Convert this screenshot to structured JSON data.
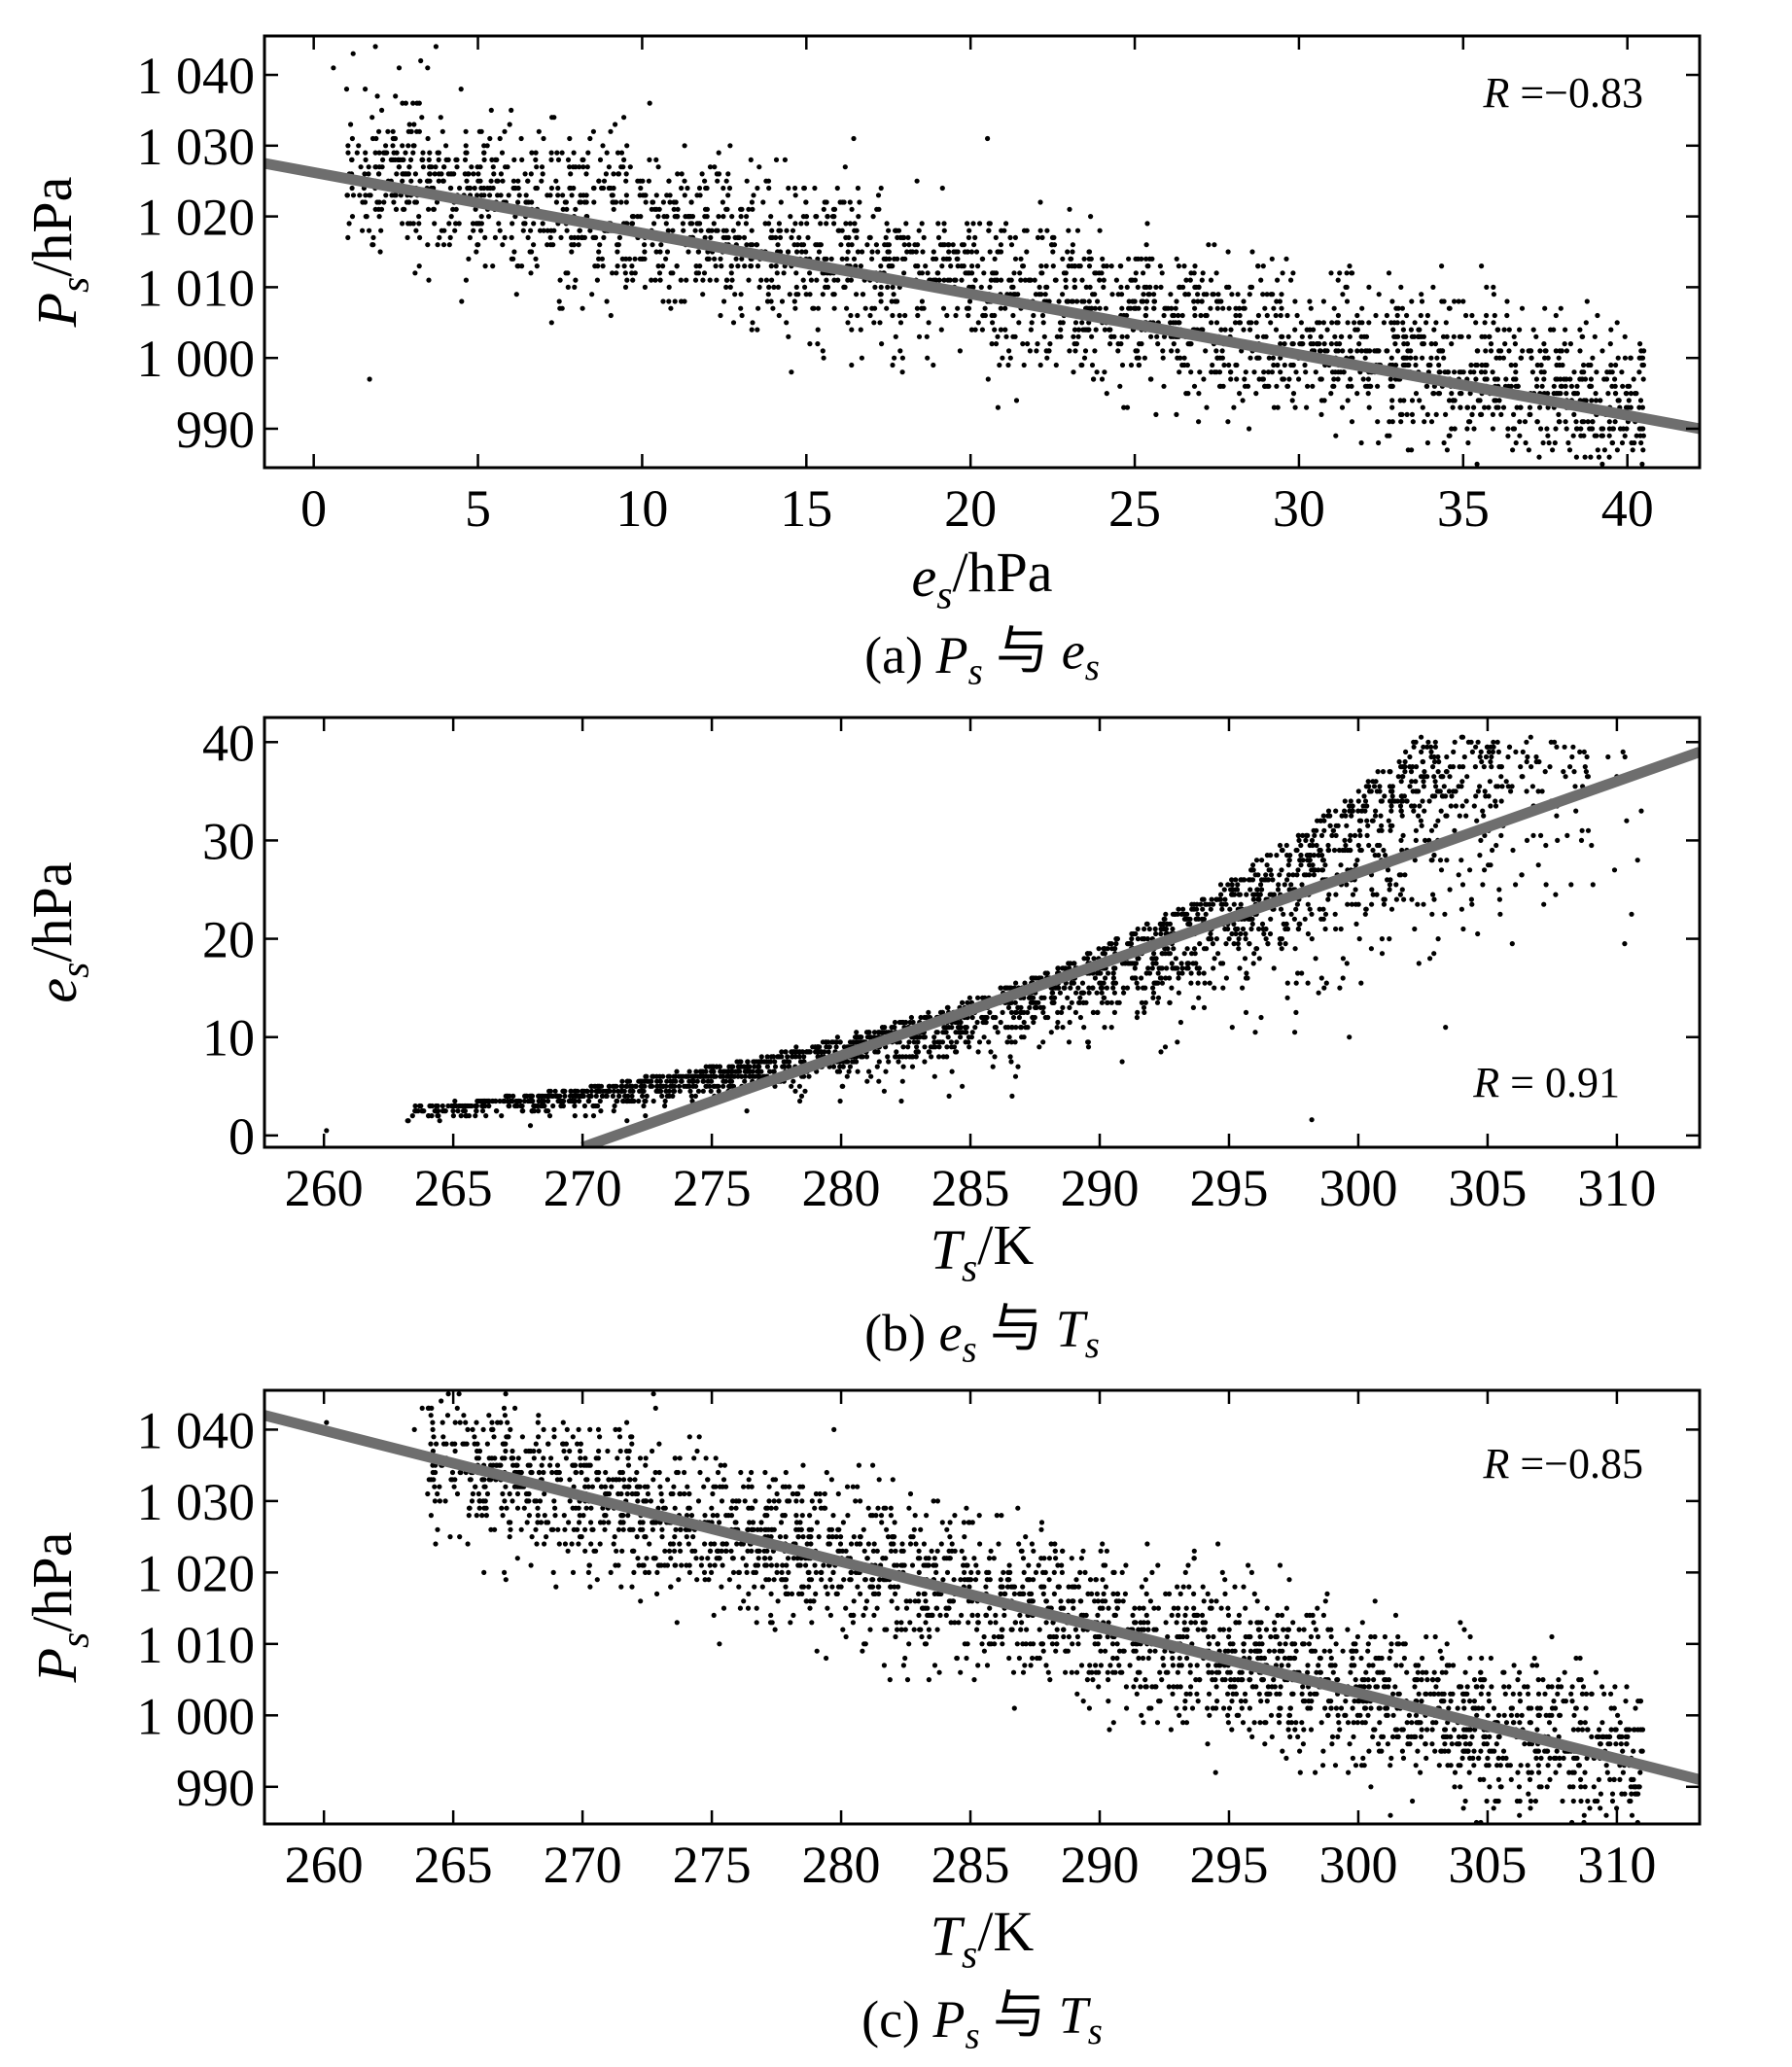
{
  "colors": {
    "background": "#ffffff",
    "points": "#000000",
    "fit_line": "#6e6e6e",
    "frame": "#000000"
  },
  "chart_data": [
    {
      "type": "scatter",
      "panel": "a",
      "caption": {
        "prefix": "(a) ",
        "v1": "P",
        "v1_sub": "s",
        "conj": " 与 ",
        "v2": "e",
        "v2_sub": "s"
      },
      "xlabel": {
        "var": "e",
        "sub": "s",
        "unit": "/hPa"
      },
      "ylabel": {
        "var": "P",
        "sub": "s",
        "unit": "/hPa"
      },
      "xlim": [
        -1.5,
        42.2
      ],
      "ylim": [
        984.5,
        1045.5
      ],
      "xticks": [
        0,
        5,
        10,
        15,
        20,
        25,
        30,
        35,
        40
      ],
      "xtick_labels": [
        "0",
        "5",
        "10",
        "15",
        "20",
        "25",
        "30",
        "35",
        "40"
      ],
      "yticks": [
        990,
        1000,
        1010,
        1020,
        1030,
        1040
      ],
      "ytick_labels": [
        "990",
        "1 000",
        "1 010",
        "1 020",
        "1 030",
        "1 040"
      ],
      "annotation": {
        "var": "R",
        "text": " =−0.83"
      },
      "R": -0.83,
      "fit_line": {
        "x": [
          -1.5,
          42.2
        ],
        "y": [
          1027.5,
          990
        ]
      },
      "point_cloud": {
        "n": 2600,
        "x_range": [
          1,
          40.5
        ],
        "mean_fn": [
          1027.5,
          -0.85
        ],
        "spread": 5.5,
        "seed": 11
      },
      "outliers": [
        [
          1.7,
          997
        ],
        [
          0.6,
          1041
        ],
        [
          1.2,
          1043
        ],
        [
          2.6,
          1041
        ],
        [
          40.5,
          1001
        ],
        [
          39.5,
          1004
        ]
      ]
    },
    {
      "type": "scatter",
      "panel": "b",
      "caption": {
        "prefix": "(b) ",
        "v1": "e",
        "v1_sub": "s",
        "conj": " 与 ",
        "v2": "T",
        "v2_sub": "s"
      },
      "xlabel": {
        "var": "T",
        "sub": "s",
        "unit": "/K"
      },
      "ylabel": {
        "var": "e",
        "sub": "s",
        "unit": "/hPa"
      },
      "xlim": [
        257.7,
        313.2
      ],
      "ylim": [
        -1.2,
        42.5
      ],
      "xticks": [
        260,
        265,
        270,
        275,
        280,
        285,
        290,
        295,
        300,
        305,
        310
      ],
      "xtick_labels": [
        "260",
        "265",
        "270",
        "275",
        "280",
        "285",
        "290",
        "295",
        "300",
        "305",
        "310"
      ],
      "yticks": [
        0,
        10,
        20,
        30,
        40
      ],
      "ytick_labels": [
        "0",
        "10",
        "20",
        "30",
        "40"
      ],
      "annotation": {
        "var": "R",
        "text": " = 0.91"
      },
      "R": 0.91,
      "fit_line": {
        "x": [
          270,
          313.2
        ],
        "y": [
          -1.2,
          39
        ]
      },
      "point_cloud": {
        "n": 2800,
        "x_range": [
          263,
          311
        ],
        "saturation_curve": true,
        "seed": 23
      },
      "outliers": [
        [
          260.1,
          0.5
        ],
        [
          298.2,
          1.6
        ],
        [
          310.3,
          19.5
        ],
        [
          310.8,
          28
        ],
        [
          304,
          40.5
        ]
      ]
    },
    {
      "type": "scatter",
      "panel": "c",
      "caption": {
        "prefix": "(c) ",
        "v1": "P",
        "v1_sub": "s",
        "conj": " 与 ",
        "v2": "T",
        "v2_sub": "s"
      },
      "xlabel": {
        "var": "T",
        "sub": "s",
        "unit": "/K"
      },
      "ylabel": {
        "var": "P",
        "sub": "s",
        "unit": "/hPa"
      },
      "xlim": [
        257.7,
        313.2
      ],
      "ylim": [
        984.8,
        1045.5
      ],
      "xticks": [
        260,
        265,
        270,
        275,
        280,
        285,
        290,
        295,
        300,
        305,
        310
      ],
      "xtick_labels": [
        "260",
        "265",
        "270",
        "275",
        "280",
        "285",
        "290",
        "295",
        "300",
        "305",
        "310"
      ],
      "yticks": [
        990,
        1000,
        1010,
        1020,
        1030,
        1040
      ],
      "ytick_labels": [
        "990",
        "1 000",
        "1 010",
        "1 020",
        "1 030",
        "1 040"
      ],
      "annotation": {
        "var": "R",
        "text": " =−0.85"
      },
      "R": -0.85,
      "fit_line": {
        "x": [
          257.7,
          313.2
        ],
        "y": [
          1042,
          991
        ]
      },
      "point_cloud": {
        "n": 2700,
        "x_range": [
          264,
          311
        ],
        "mean_fn": [
          1042,
          -0.918,
          257.7
        ],
        "spread": 5.5,
        "seed": 37
      },
      "outliers": [
        [
          260.1,
          1041
        ],
        [
          263.5,
          1040
        ],
        [
          263.8,
          1043
        ],
        [
          266.5,
          1041
        ],
        [
          311,
          998
        ]
      ]
    }
  ]
}
